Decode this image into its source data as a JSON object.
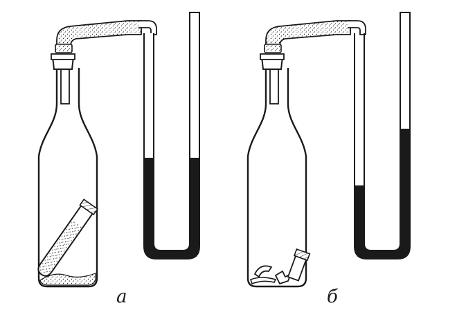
{
  "figure": {
    "panels": [
      {
        "label": "а",
        "state": "sealed test tube upright in bottle, manometer liquid levels equal",
        "left_level_fraction": 0.57,
        "right_level_fraction": 0.57
      },
      {
        "label": "б",
        "state": "test tube broken at bottom of bottle, manometer left level lower, right level higher",
        "left_level_fraction": 0.36,
        "right_level_fraction": 0.82
      }
    ]
  },
  "colors": {
    "ink": "#1a1a1a",
    "liquid": "#1a1a1a",
    "background": "#ffffff"
  }
}
